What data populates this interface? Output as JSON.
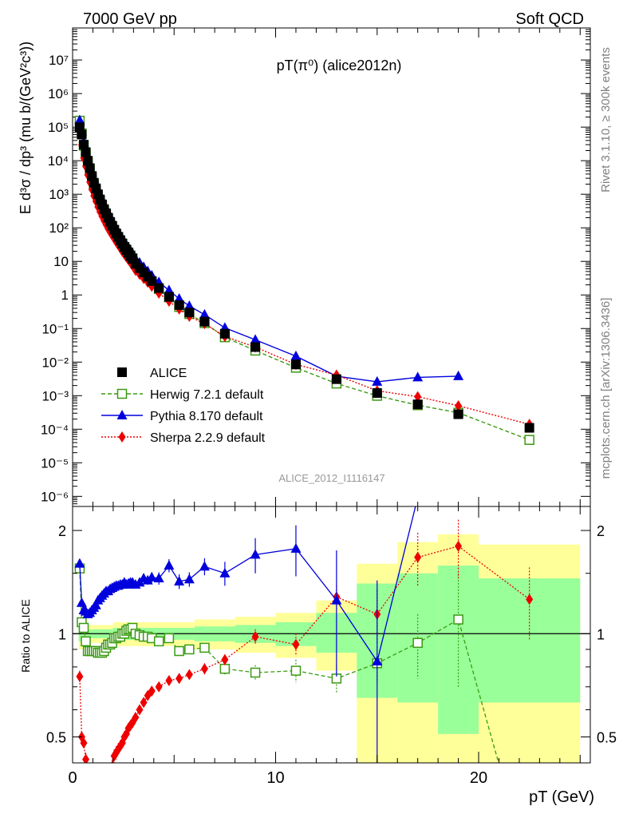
{
  "header": {
    "left": "7000 GeV pp",
    "right": "Soft QCD"
  },
  "plot_title": "pT(π⁰) (alice2012n)",
  "ylabel_main": "E d³σ / dp³ (mu b/(GeV²c³))",
  "ylabel_ratio": "Ratio to ALICE",
  "xlabel": "pT (GeV)",
  "side_text_top": "Rivet 3.1.10, ≥ 300k events",
  "side_text_bottom": "mcplots.cern.ch [arXiv:1306.3436]",
  "watermark": "ALICE_2012_I1116147",
  "legend": [
    {
      "label": "ALICE",
      "color": "#000000",
      "marker": "square-filled"
    },
    {
      "label": "Herwig 7.2.1 default",
      "color": "#3a9a12",
      "marker": "square-open",
      "dash": "5,3"
    },
    {
      "label": "Pythia 8.170 default",
      "color": "#0000dd",
      "marker": "triangle"
    },
    {
      "label": "Sherpa 2.2.9 default",
      "color": "#ee0000",
      "marker": "diamond",
      "dash": "2,2"
    }
  ],
  "main_yticks": [
    "10⁻⁶",
    "10⁻⁵",
    "10⁻⁴",
    "10⁻³",
    "10⁻²",
    "10⁻¹",
    "1",
    "10",
    "10²",
    "10³",
    "10⁴",
    "10⁵",
    "10⁶",
    "10⁷"
  ],
  "ratio_yticks": [
    "0.5",
    "1",
    "2"
  ],
  "xticks": [
    "0",
    "10",
    "20"
  ],
  "chart_data": {
    "type": "scatter",
    "x_axis": {
      "label": "pT (GeV)",
      "range": [
        0,
        25.5
      ],
      "log": false
    },
    "main_y_axis": {
      "range": [
        5e-07,
        90000000.0
      ],
      "log": true
    },
    "ratio_y_axis": {
      "range": [
        0.42,
        2.35
      ],
      "log": true
    },
    "series": [
      {
        "name": "ALICE",
        "x": [
          0.35,
          0.45,
          0.55,
          0.65,
          0.75,
          0.85,
          0.95,
          1.05,
          1.15,
          1.25,
          1.35,
          1.45,
          1.55,
          1.65,
          1.75,
          1.85,
          1.95,
          2.05,
          2.15,
          2.25,
          2.35,
          2.45,
          2.55,
          2.65,
          2.75,
          2.85,
          2.95,
          3.1,
          3.3,
          3.5,
          3.7,
          3.9,
          4.25,
          4.75,
          5.25,
          5.75,
          6.5,
          7.5,
          9.0,
          11.0,
          13.0,
          15.0,
          17.0,
          19.0,
          22.5
        ],
        "y": [
          100000,
          60000,
          30000,
          18000,
          10000,
          6000,
          3500,
          2200,
          1500,
          1000,
          700,
          500,
          360,
          270,
          200,
          150,
          115,
          88,
          68,
          54,
          43,
          34,
          27,
          22,
          18,
          14.5,
          12,
          8.5,
          6.3,
          4.7,
          3.5,
          2.6,
          1.6,
          0.88,
          0.5,
          0.3,
          0.16,
          0.07,
          0.028,
          0.0085,
          0.0031,
          0.0012,
          0.00055,
          0.00028,
          0.00011
        ]
      },
      {
        "name": "Herwig 7.2.1 default",
        "x": [
          0.35,
          0.45,
          0.55,
          0.65,
          0.75,
          0.85,
          0.95,
          1.05,
          1.15,
          1.25,
          1.35,
          1.45,
          1.55,
          1.65,
          1.75,
          1.85,
          1.95,
          2.05,
          2.15,
          2.25,
          2.35,
          2.45,
          2.55,
          2.65,
          2.75,
          2.85,
          2.95,
          3.1,
          3.3,
          3.5,
          3.7,
          3.9,
          4.25,
          4.75,
          5.25,
          5.75,
          6.5,
          7.5,
          9.0,
          11.0,
          13.0,
          15.0,
          17.0,
          19.0,
          22.5
        ],
        "y": [
          155000,
          65000,
          28000,
          16000,
          8900,
          5300,
          3100,
          1950,
          1330,
          880,
          615,
          440,
          320,
          245,
          185,
          140,
          108,
          85,
          66,
          53,
          42,
          34,
          27,
          22.5,
          18.5,
          15,
          12.5,
          8.5,
          6.2,
          4.6,
          3.4,
          2.5,
          1.5,
          0.85,
          0.44,
          0.27,
          0.145,
          0.055,
          0.022,
          0.0068,
          0.0023,
          0.00099,
          0.00052,
          0.00031,
          4.8e-05
        ]
      },
      {
        "name": "Pythia 8.170 default",
        "x": [
          0.35,
          0.45,
          0.55,
          0.65,
          0.75,
          0.85,
          0.95,
          1.05,
          1.15,
          1.25,
          1.35,
          1.45,
          1.55,
          1.65,
          1.75,
          1.85,
          1.95,
          2.05,
          2.15,
          2.25,
          2.35,
          2.45,
          2.55,
          2.65,
          2.75,
          2.85,
          2.95,
          3.1,
          3.3,
          3.5,
          3.7,
          3.9,
          4.25,
          4.75,
          5.25,
          5.75,
          6.5,
          7.5,
          9.0,
          11.0,
          13.0,
          15.0,
          17.0,
          19.0
        ],
        "y": [
          160000,
          74000,
          35000,
          20000,
          12000,
          7400,
          4400,
          2800,
          1930,
          1300,
          920,
          670,
          490,
          370,
          280,
          210,
          160,
          122,
          95,
          76,
          60,
          48,
          39,
          31,
          26,
          21,
          17.5,
          12,
          9.1,
          6.8,
          5.1,
          3.8,
          2.4,
          1.38,
          0.77,
          0.47,
          0.26,
          0.105,
          0.046,
          0.015,
          0.0038,
          0.0026,
          0.0035,
          0.0038
        ]
      },
      {
        "name": "Sherpa 2.2.9 default",
        "x": [
          0.35,
          0.45,
          0.55,
          0.65,
          0.75,
          0.85,
          0.95,
          1.05,
          1.15,
          1.25,
          1.35,
          1.45,
          1.55,
          1.65,
          1.75,
          1.85,
          1.95,
          2.05,
          2.15,
          2.25,
          2.35,
          2.45,
          2.55,
          2.65,
          2.75,
          2.85,
          2.95,
          3.1,
          3.3,
          3.5,
          3.7,
          3.9,
          4.25,
          4.75,
          5.25,
          5.75,
          6.5,
          7.5,
          9.0,
          11.0,
          13.0,
          15.0,
          17.0,
          19.0,
          22.5
        ],
        "y": [
          75000,
          30000,
          12000,
          6800,
          3800,
          2300,
          1400,
          900,
          620,
          420,
          300,
          220,
          165,
          125,
          95,
          75,
          60,
          48,
          38,
          31,
          25,
          20,
          16.5,
          13.5,
          11.2,
          9.2,
          7.6,
          5.4,
          4.1,
          3.1,
          2.4,
          1.8,
          1.13,
          0.65,
          0.38,
          0.23,
          0.14,
          0.058,
          0.028,
          0.0085,
          0.0041,
          0.0014,
          0.00093,
          0.0005,
          0.00014
        ]
      }
    ],
    "ratio_series": [
      {
        "name": "Herwig 7.2.1 default",
        "x": [
          0.35,
          0.45,
          0.55,
          0.65,
          0.75,
          0.85,
          0.95,
          1.05,
          1.15,
          1.25,
          1.35,
          1.45,
          1.55,
          1.65,
          1.75,
          1.85,
          1.95,
          2.05,
          2.15,
          2.25,
          2.35,
          2.45,
          2.55,
          2.65,
          2.75,
          2.85,
          2.95,
          3.1,
          3.3,
          3.5,
          3.7,
          3.9,
          4.25,
          4.75,
          5.25,
          5.75,
          6.5,
          7.5,
          9.0,
          11.0,
          13.0,
          15.0,
          17.0,
          19.0,
          21.3
        ],
        "y": [
          1.55,
          1.08,
          1.04,
          0.95,
          0.89,
          0.89,
          0.89,
          0.89,
          0.89,
          0.88,
          0.88,
          0.88,
          0.89,
          0.91,
          0.93,
          0.93,
          0.94,
          0.97,
          0.97,
          0.98,
          0.98,
          1.0,
          1.0,
          1.02,
          1.03,
          1.03,
          1.04,
          1.0,
          0.99,
          0.98,
          0.98,
          0.97,
          0.95,
          0.97,
          0.89,
          0.9,
          0.91,
          0.79,
          0.77,
          0.78,
          0.74,
          0.82,
          0.94,
          1.1,
          0.36
        ],
        "err": [
          0.05,
          0.03,
          0.03,
          0.02,
          0.02,
          0.02,
          0.02,
          0.02,
          0.02,
          0.02,
          0.02,
          0.02,
          0.02,
          0.02,
          0.02,
          0.02,
          0.02,
          0.02,
          0.02,
          0.02,
          0.02,
          0.02,
          0.02,
          0.02,
          0.02,
          0.02,
          0.02,
          0.02,
          0.02,
          0.02,
          0.02,
          0.02,
          0.02,
          0.02,
          0.02,
          0.02,
          0.02,
          0.03,
          0.04,
          0.06,
          0.07,
          0.1,
          0.2,
          0.4,
          0
        ]
      },
      {
        "name": "Pythia 8.170 default",
        "x": [
          0.35,
          0.45,
          0.55,
          0.65,
          0.75,
          0.85,
          0.95,
          1.05,
          1.15,
          1.25,
          1.35,
          1.45,
          1.55,
          1.65,
          1.75,
          1.85,
          1.95,
          2.05,
          2.15,
          2.25,
          2.35,
          2.45,
          2.55,
          2.65,
          2.75,
          2.85,
          2.95,
          3.1,
          3.3,
          3.5,
          3.7,
          3.9,
          4.25,
          4.75,
          5.25,
          5.75,
          6.5,
          7.5,
          9.0,
          11.0,
          13.0,
          15.0,
          17.0
        ],
        "y": [
          1.6,
          1.23,
          1.17,
          1.16,
          1.14,
          1.15,
          1.17,
          1.19,
          1.21,
          1.25,
          1.27,
          1.29,
          1.31,
          1.33,
          1.33,
          1.35,
          1.36,
          1.37,
          1.38,
          1.38,
          1.39,
          1.39,
          1.41,
          1.39,
          1.4,
          1.41,
          1.41,
          1.39,
          1.41,
          1.45,
          1.43,
          1.46,
          1.45,
          1.58,
          1.42,
          1.44,
          1.57,
          1.5,
          1.7,
          1.77,
          1.25,
          0.83,
          2.5
        ],
        "err": [
          0.05,
          0.02,
          0.02,
          0.02,
          0.02,
          0.02,
          0.02,
          0.02,
          0.02,
          0.02,
          0.02,
          0.02,
          0.02,
          0.02,
          0.02,
          0.02,
          0.02,
          0.02,
          0.02,
          0.02,
          0.02,
          0.02,
          0.02,
          0.02,
          0.02,
          0.02,
          0.02,
          0.03,
          0.03,
          0.04,
          0.04,
          0.05,
          0.06,
          0.07,
          0.07,
          0.07,
          0.09,
          0.12,
          0.2,
          0.3,
          0.5,
          0.6,
          0
        ]
      },
      {
        "name": "Sherpa 2.2.9 default",
        "x": [
          0.35,
          0.45,
          0.55,
          0.65,
          0.75,
          0.85,
          0.95,
          1.05,
          1.15,
          1.25,
          1.35,
          1.45,
          1.55,
          1.65,
          1.75,
          1.85,
          1.95,
          2.05,
          2.15,
          2.25,
          2.35,
          2.45,
          2.55,
          2.65,
          2.75,
          2.85,
          2.95,
          3.1,
          3.3,
          3.5,
          3.7,
          3.9,
          4.25,
          4.75,
          5.25,
          5.75,
          6.5,
          7.5,
          9.0,
          11.0,
          13.0,
          15.0,
          17.0,
          19.0,
          22.5
        ],
        "y": [
          0.75,
          0.5,
          0.48,
          0.43,
          0.38,
          0.38,
          0.38,
          0.38,
          0.38,
          0.38,
          0.38,
          0.38,
          0.38,
          0.38,
          0.38,
          0.38,
          0.41,
          0.44,
          0.45,
          0.46,
          0.47,
          0.48,
          0.5,
          0.51,
          0.53,
          0.54,
          0.55,
          0.57,
          0.6,
          0.63,
          0.66,
          0.68,
          0.7,
          0.73,
          0.74,
          0.76,
          0.79,
          0.84,
          0.98,
          0.93,
          1.28,
          1.14,
          1.67,
          1.8,
          1.26
        ],
        "err": [
          0.03,
          0.02,
          0.02,
          0.02,
          0.02,
          0.02,
          0.02,
          0.02,
          0.02,
          0.02,
          0.02,
          0.02,
          0.02,
          0.02,
          0.02,
          0.02,
          0.02,
          0.02,
          0.02,
          0.02,
          0.02,
          0.02,
          0.02,
          0.02,
          0.02,
          0.02,
          0.02,
          0.02,
          0.02,
          0.02,
          0.02,
          0.02,
          0.02,
          0.02,
          0.02,
          0.02,
          0.03,
          0.03,
          0.05,
          0.07,
          0.1,
          0.2,
          0.3,
          0.35,
          0.3
        ]
      }
    ],
    "bands": {
      "yellow": [
        {
          "x0": 0.3,
          "x1": 0.5,
          "lo": 0.9,
          "hi": 1.1
        },
        {
          "x0": 0.5,
          "x1": 2.0,
          "lo": 0.94,
          "hi": 1.06
        },
        {
          "x0": 2.0,
          "x1": 6.0,
          "lo": 0.92,
          "hi": 1.08
        },
        {
          "x0": 6.0,
          "x1": 8.0,
          "lo": 0.9,
          "hi": 1.1
        },
        {
          "x0": 8.0,
          "x1": 10.0,
          "lo": 0.88,
          "hi": 1.12
        },
        {
          "x0": 10.0,
          "x1": 12.0,
          "lo": 0.85,
          "hi": 1.15
        },
        {
          "x0": 12.0,
          "x1": 14.0,
          "lo": 0.78,
          "hi": 1.25
        },
        {
          "x0": 14.0,
          "x1": 16.0,
          "lo": 0.36,
          "hi": 1.6
        },
        {
          "x0": 16.0,
          "x1": 18.0,
          "lo": 0.36,
          "hi": 1.85
        },
        {
          "x0": 18.0,
          "x1": 20.0,
          "lo": 0.36,
          "hi": 1.95
        },
        {
          "x0": 20.0,
          "x1": 25.0,
          "lo": 0.36,
          "hi": 1.82
        }
      ],
      "green": [
        {
          "x0": 0.3,
          "x1": 0.5,
          "lo": 0.95,
          "hi": 1.05
        },
        {
          "x0": 0.5,
          "x1": 2.0,
          "lo": 0.97,
          "hi": 1.03
        },
        {
          "x0": 2.0,
          "x1": 6.0,
          "lo": 0.96,
          "hi": 1.04
        },
        {
          "x0": 6.0,
          "x1": 8.0,
          "lo": 0.95,
          "hi": 1.05
        },
        {
          "x0": 8.0,
          "x1": 10.0,
          "lo": 0.94,
          "hi": 1.06
        },
        {
          "x0": 10.0,
          "x1": 12.0,
          "lo": 0.92,
          "hi": 1.08
        },
        {
          "x0": 12.0,
          "x1": 14.0,
          "lo": 0.88,
          "hi": 1.15
        },
        {
          "x0": 14.0,
          "x1": 16.0,
          "lo": 0.65,
          "hi": 1.4
        },
        {
          "x0": 16.0,
          "x1": 18.0,
          "lo": 0.63,
          "hi": 1.5
        },
        {
          "x0": 18.0,
          "x1": 20.0,
          "lo": 0.51,
          "hi": 1.58
        },
        {
          "x0": 20.0,
          "x1": 25.0,
          "lo": 0.63,
          "hi": 1.45
        }
      ]
    },
    "reference_line": 1
  }
}
